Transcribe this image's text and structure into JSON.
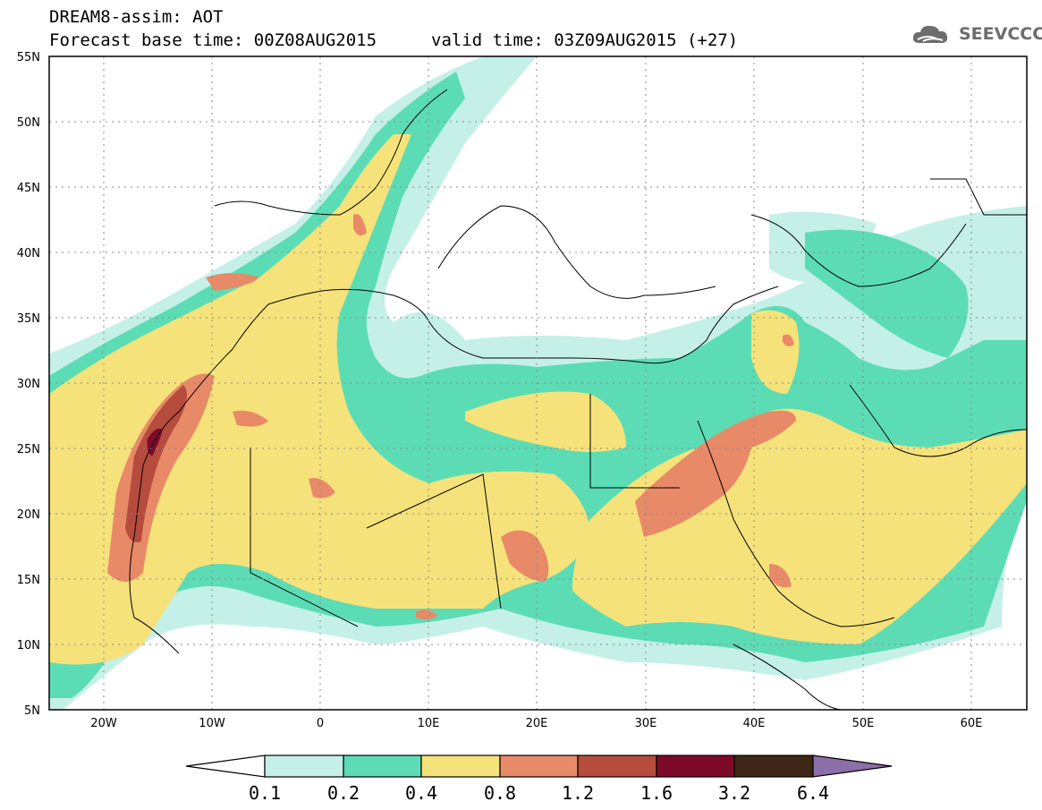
{
  "header": {
    "line1": "DREAM8-assim: AOT",
    "line2": "Forecast base time: 00Z08AUG2015",
    "valid": "valid time: 03Z09AUG2015 (+27)"
  },
  "logo": {
    "text": "SEEVCCC",
    "icon": "cloud-icon"
  },
  "map": {
    "lat_labels": [
      "55N",
      "50N",
      "45N",
      "40N",
      "35N",
      "30N",
      "25N",
      "20N",
      "15N",
      "10N",
      "5N"
    ],
    "lon_labels": [
      "20W",
      "10W",
      "0",
      "10E",
      "20E",
      "30E",
      "40E",
      "50E",
      "60E"
    ],
    "lon_range": [
      -25,
      65
    ],
    "lat_range": [
      5,
      55
    ]
  },
  "colorbar": {
    "labels": [
      "0.1",
      "0.2",
      "0.4",
      "0.8",
      "1.2",
      "1.6",
      "3.2",
      "6.4"
    ],
    "colors": [
      "#ffffff",
      "#c4f0e8",
      "#5cdcb4",
      "#f6e27a",
      "#e88a68",
      "#b64c3e",
      "#7e0a2a",
      "#3e2616",
      "#8c6ea8"
    ]
  }
}
